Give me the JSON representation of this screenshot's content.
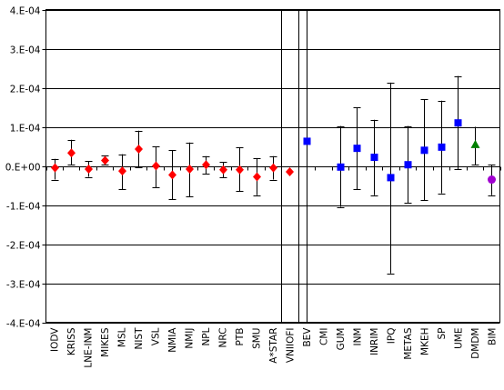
{
  "chart_data": {
    "type": "scatter",
    "title": "",
    "xlabel": "",
    "ylabel": "",
    "ylim": [
      -0.0004,
      0.0004
    ],
    "y_ticks": [
      {
        "value": 0.0004,
        "label": "4.E-04"
      },
      {
        "value": 0.0003,
        "label": "3.E-04"
      },
      {
        "value": 0.0002,
        "label": "2.E-04"
      },
      {
        "value": 0.0001,
        "label": "1.E-04"
      },
      {
        "value": 0.0,
        "label": "0.E+00"
      },
      {
        "value": -0.0001,
        "label": "-1.E-04"
      },
      {
        "value": -0.0002,
        "label": "-2.E-04"
      },
      {
        "value": -0.0003,
        "label": "-3.E-04"
      },
      {
        "value": -0.0004,
        "label": "-4.E-04"
      }
    ],
    "categories": [
      "IODV",
      "KRISS",
      "LNE-INM",
      "MIKES",
      "MSL",
      "NIST",
      "VSL",
      "NMIA",
      "NMIJ",
      "NPL",
      "NRC",
      "PTB",
      "SMU",
      "A*STAR",
      "VNIIOFI",
      "BEV",
      "CMI",
      "GUM",
      "INM",
      "INRIM",
      "IPQ",
      "METAS",
      "MKEH",
      "SP",
      "UME",
      "DMDM",
      "BIM"
    ],
    "grid": "horizontal",
    "legend": "none",
    "separators_after": [
      "A*STAR",
      "VNIIOFI"
    ],
    "series": [
      {
        "marker": "diamond",
        "color": "#ff0000",
        "points": [
          {
            "category": "IODV",
            "y": -5e-06,
            "low": -3.5e-05,
            "high": 1.8e-05
          },
          {
            "category": "KRISS",
            "y": 3.3e-05,
            "low": 3e-06,
            "high": 6.7e-05
          },
          {
            "category": "LNE-INM",
            "y": -8e-06,
            "low": -2.8e-05,
            "high": 1.2e-05
          },
          {
            "category": "MIKES",
            "y": 1.4e-05,
            "low": 3e-06,
            "high": 2.7e-05
          },
          {
            "category": "MSL",
            "y": -1.3e-05,
            "low": -6e-05,
            "high": 3e-05
          },
          {
            "category": "NIST",
            "y": 4.3e-05,
            "low": -3e-06,
            "high": 9e-05
          },
          {
            "category": "VSL",
            "y": 0.0,
            "low": -5.5e-05,
            "high": 5e-05
          },
          {
            "category": "NMIA",
            "y": -2.3e-05,
            "low": -8.5e-05,
            "high": 4e-05
          },
          {
            "category": "NMIJ",
            "y": -8e-06,
            "low": -7.8e-05,
            "high": 6e-05
          },
          {
            "category": "NPL",
            "y": 3e-06,
            "low": -2e-05,
            "high": 2.5e-05
          },
          {
            "category": "NRC",
            "y": -1e-05,
            "low": -3e-05,
            "high": 1e-05
          },
          {
            "category": "PTB",
            "y": -1e-05,
            "low": -6.5e-05,
            "high": 4.8e-05
          },
          {
            "category": "SMU",
            "y": -2.8e-05,
            "low": -7.5e-05,
            "high": 2e-05
          },
          {
            "category": "A*STAR",
            "y": -5e-06,
            "low": -3.5e-05,
            "high": 2.5e-05
          },
          {
            "category": "VNIIOFI",
            "y": -1.5e-05,
            "low": -1.5e-05,
            "high": -1.5e-05
          }
        ]
      },
      {
        "marker": "square",
        "color": "#0000ff",
        "points": [
          {
            "category": "BEV",
            "y": 6.3e-05,
            "low": -0.0004,
            "high": 0.0004
          },
          {
            "category": "CMI",
            "y": null,
            "low": null,
            "high": null
          },
          {
            "category": "GUM",
            "y": -3e-06,
            "low": -0.000105,
            "high": 0.000102
          },
          {
            "category": "INM",
            "y": 4.5e-05,
            "low": -6e-05,
            "high": 0.00015
          },
          {
            "category": "INRIM",
            "y": 2.2e-05,
            "low": -7.5e-05,
            "high": 0.000118
          },
          {
            "category": "IPQ",
            "y": -3e-05,
            "low": -0.000275,
            "high": 0.000213
          },
          {
            "category": "METAS",
            "y": 3e-06,
            "low": -9.5e-05,
            "high": 0.000102
          },
          {
            "category": "MKEH",
            "y": 4e-05,
            "low": -8.8e-05,
            "high": 0.00017
          },
          {
            "category": "SP",
            "y": 4.8e-05,
            "low": -7e-05,
            "high": 0.000167
          },
          {
            "category": "UME",
            "y": 0.00011,
            "low": -8e-06,
            "high": 0.00023
          }
        ]
      },
      {
        "marker": "triangle",
        "color": "#008000",
        "points": [
          {
            "category": "DMDM",
            "y": 5.5e-05,
            "low": 3e-06,
            "high": 0.0001
          }
        ]
      },
      {
        "marker": "circle",
        "color": "#a000d0",
        "points": [
          {
            "category": "BIM",
            "y": -3.5e-05,
            "low": -7.5e-05,
            "high": 3e-06
          }
        ]
      }
    ]
  }
}
